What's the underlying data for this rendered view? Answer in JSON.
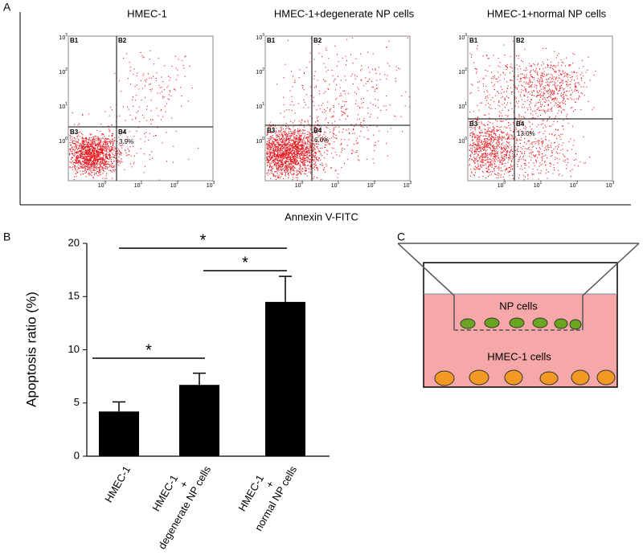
{
  "panel_a": {
    "label": "A",
    "xlabel": "Annexin V-FITC",
    "tick_base": "10",
    "x_exponents": [
      "0",
      "1",
      "2",
      "3"
    ],
    "y_exponents": [
      "0",
      "1",
      "2",
      "3"
    ],
    "quadrants": [
      "B1",
      "B2",
      "B3",
      "B4"
    ],
    "plots": [
      {
        "title": "HMEC-1",
        "percent": "3.9%"
      },
      {
        "title": "HMEC-1+degenerate NP cells",
        "percent": "6.0%"
      },
      {
        "title": "HMEC-1+normal NP cells",
        "percent": "13.0%"
      }
    ]
  },
  "chart_data": {
    "type": "bar",
    "label": "B",
    "ylabel": "Apoptosis ratio (%)",
    "categories": [
      [
        "HMEC-1"
      ],
      [
        "HMEC-1",
        "+",
        "degenerate NP cells"
      ],
      [
        "HMEC-1",
        "+",
        "normal NP cells"
      ]
    ],
    "values": [
      4.2,
      6.7,
      14.5
    ],
    "errors": [
      0.9,
      1.1,
      2.4
    ],
    "color": "#000000",
    "ylim": [
      0,
      20
    ],
    "yticks": [
      0,
      5,
      10,
      15,
      20
    ],
    "significance": [
      {
        "pair": [
          0,
          1
        ],
        "text": "*"
      },
      {
        "pair": [
          0,
          2
        ],
        "text": "*"
      },
      {
        "pair": [
          1,
          2
        ],
        "text": "*"
      }
    ]
  },
  "panel_c": {
    "label": "C",
    "upper": "NP cells",
    "lower": "HMEC-1 cells"
  }
}
